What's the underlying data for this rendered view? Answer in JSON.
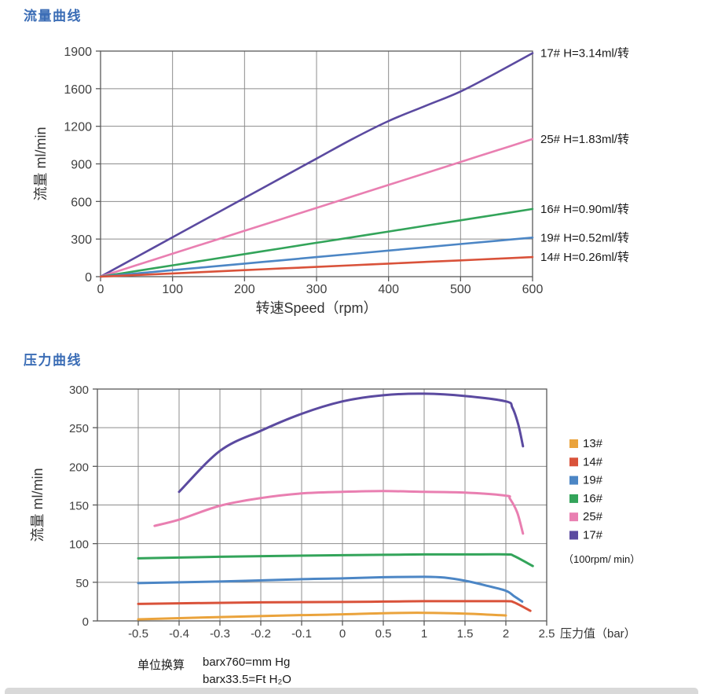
{
  "title_color": "#3a6cb5",
  "axis_color": "#595959",
  "grid_color": "#8c8c8c",
  "tick_label_color": "#3f3f3f",
  "footnote": {
    "label": "单位换算",
    "lines": [
      "barx760=mm Hg",
      "barx33.5=Ft H₂O"
    ]
  },
  "chart_data": [
    {
      "type": "line",
      "title": "流量曲线",
      "xlabel": "转速Speed（rpm）",
      "ylabel": "流量 ml/min",
      "x_ticks": [
        0,
        100,
        200,
        300,
        400,
        500,
        600
      ],
      "x_tick_labels": [
        "0",
        "100",
        "200",
        "300",
        "400",
        "500",
        "600"
      ],
      "y_ticks": [
        0,
        300,
        600,
        900,
        1200,
        1600,
        1900
      ],
      "y_tick_labels": [
        "0",
        "300",
        "600",
        "900",
        "1200",
        "1600",
        "1900"
      ],
      "ylim": [
        0,
        1900
      ],
      "grid": true,
      "legend_position": "labels-right-of-line-ends",
      "series": [
        {
          "name": "17# H=3.14ml/转",
          "color": "#5b4aa0",
          "points": [
            [
              0,
              0
            ],
            [
              600,
              1884
            ]
          ]
        },
        {
          "name": "25# H=1.83ml/转",
          "color": "#e97fb1",
          "points": [
            [
              0,
              0
            ],
            [
              600,
              1098
            ]
          ]
        },
        {
          "name": "16# H=0.90ml/转",
          "color": "#33a45a",
          "points": [
            [
              0,
              0
            ],
            [
              600,
              540
            ]
          ]
        },
        {
          "name": "19# H=0.52ml/转",
          "color": "#4c86c5",
          "points": [
            [
              0,
              0
            ],
            [
              600,
              312
            ]
          ]
        },
        {
          "name": "14# H=0.26ml/转",
          "color": "#d9523a",
          "points": [
            [
              0,
              0
            ],
            [
              600,
              156
            ]
          ]
        }
      ]
    },
    {
      "type": "line",
      "title": "压力曲线",
      "xlabel": "压力值（bar）",
      "ylabel": "流量 ml/min",
      "x_ticks": [
        -0.5,
        -0.4,
        -0.3,
        -0.2,
        -0.1,
        0,
        0.5,
        1,
        1.5,
        2,
        2.5
      ],
      "x_tick_labels": [
        "-0.5",
        "-0.4",
        "-0.3",
        "-0.2",
        "-0.1",
        "0",
        "0.5",
        "1",
        "1.5",
        "2",
        "2.5"
      ],
      "y_ticks": [
        0,
        50,
        100,
        150,
        200,
        250,
        300
      ],
      "y_tick_labels": [
        "0",
        "50",
        "100",
        "150",
        "200",
        "250",
        "300"
      ],
      "ylim": [
        0,
        300
      ],
      "grid": true,
      "legend_position": "right",
      "legend_note": "（100rpm/ min）",
      "series": [
        {
          "name": "13#",
          "color": "#eaa33c",
          "points": [
            [
              -0.5,
              2
            ],
            [
              -0.3,
              5
            ],
            [
              -0.1,
              7.5
            ],
            [
              0,
              8.5
            ],
            [
              0.5,
              10
            ],
            [
              1,
              10.5
            ],
            [
              1.5,
              9.5
            ],
            [
              2,
              7
            ]
          ]
        },
        {
          "name": "14#",
          "color": "#d9523a",
          "points": [
            [
              -0.5,
              22
            ],
            [
              -0.2,
              24
            ],
            [
              0,
              24.5
            ],
            [
              0.5,
              25
            ],
            [
              1,
              25.5
            ],
            [
              1.5,
              25.5
            ],
            [
              2,
              25.5
            ],
            [
              2.1,
              24
            ],
            [
              2.3,
              13
            ]
          ]
        },
        {
          "name": "19#",
          "color": "#4c86c5",
          "points": [
            [
              -0.5,
              49
            ],
            [
              -0.3,
              51
            ],
            [
              -0.1,
              54
            ],
            [
              0,
              55
            ],
            [
              0.5,
              56.5
            ],
            [
              1,
              57
            ],
            [
              1.25,
              56
            ],
            [
              1.5,
              52
            ],
            [
              1.75,
              46
            ],
            [
              2,
              39
            ],
            [
              2.1,
              32
            ],
            [
              2.2,
              25
            ]
          ]
        },
        {
          "name": "16#",
          "color": "#33a45a",
          "points": [
            [
              -0.5,
              81
            ],
            [
              -0.3,
              83
            ],
            [
              0,
              85
            ],
            [
              0.5,
              85.5
            ],
            [
              1,
              86
            ],
            [
              1.5,
              86
            ],
            [
              2,
              86
            ],
            [
              2.1,
              84
            ],
            [
              2.33,
              71
            ]
          ]
        },
        {
          "name": "25#",
          "color": "#e97fb1",
          "points": [
            [
              -0.46,
              123
            ],
            [
              -0.4,
              131
            ],
            [
              -0.3,
              149
            ],
            [
              -0.2,
              159
            ],
            [
              -0.1,
              165
            ],
            [
              0,
              167
            ],
            [
              0.5,
              168
            ],
            [
              1,
              167
            ],
            [
              1.5,
              166
            ],
            [
              2,
              162
            ],
            [
              2.05,
              158
            ],
            [
              2.14,
              140
            ],
            [
              2.21,
              113
            ]
          ]
        },
        {
          "name": "17#",
          "color": "#5b4aa0",
          "points": [
            [
              -0.4,
              167
            ],
            [
              -0.3,
              220
            ],
            [
              -0.2,
              246
            ],
            [
              -0.1,
              268
            ],
            [
              0,
              284
            ],
            [
              0.5,
              292
            ],
            [
              1,
              294
            ],
            [
              1.5,
              291
            ],
            [
              2,
              284
            ],
            [
              2.08,
              276
            ],
            [
              2.15,
              255
            ],
            [
              2.21,
              226
            ]
          ]
        }
      ]
    }
  ]
}
